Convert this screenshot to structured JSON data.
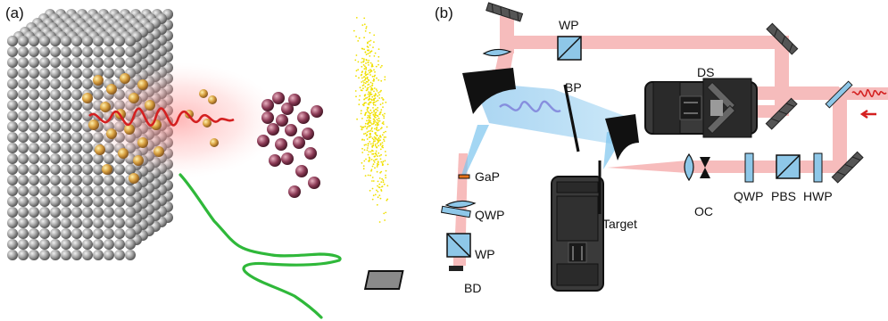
{
  "panel_a": {
    "label": "(a)"
  },
  "panel_b": {
    "label": "(b)",
    "components": {
      "wp_top": "WP",
      "bp": "BP",
      "ds": "DS",
      "gap": "GaP",
      "qwp_left": "QWP",
      "wp_left": "WP",
      "bd": "BD",
      "target": "Target",
      "oc": "OC",
      "qwp_right": "QWP",
      "pbs": "PBS",
      "hwp": "HWP"
    }
  },
  "colors": {
    "beam_red": "#f4a6a6",
    "beam_blue": "#7cc4ee",
    "optic_blue": "#8ec7e8",
    "atom_gray": "#9a9a9a",
    "electron_maroon": "#8b3a55",
    "thz_green": "#2fb83a",
    "pulse_red": "#d42020",
    "scatter_yellow": "#f0e000"
  }
}
